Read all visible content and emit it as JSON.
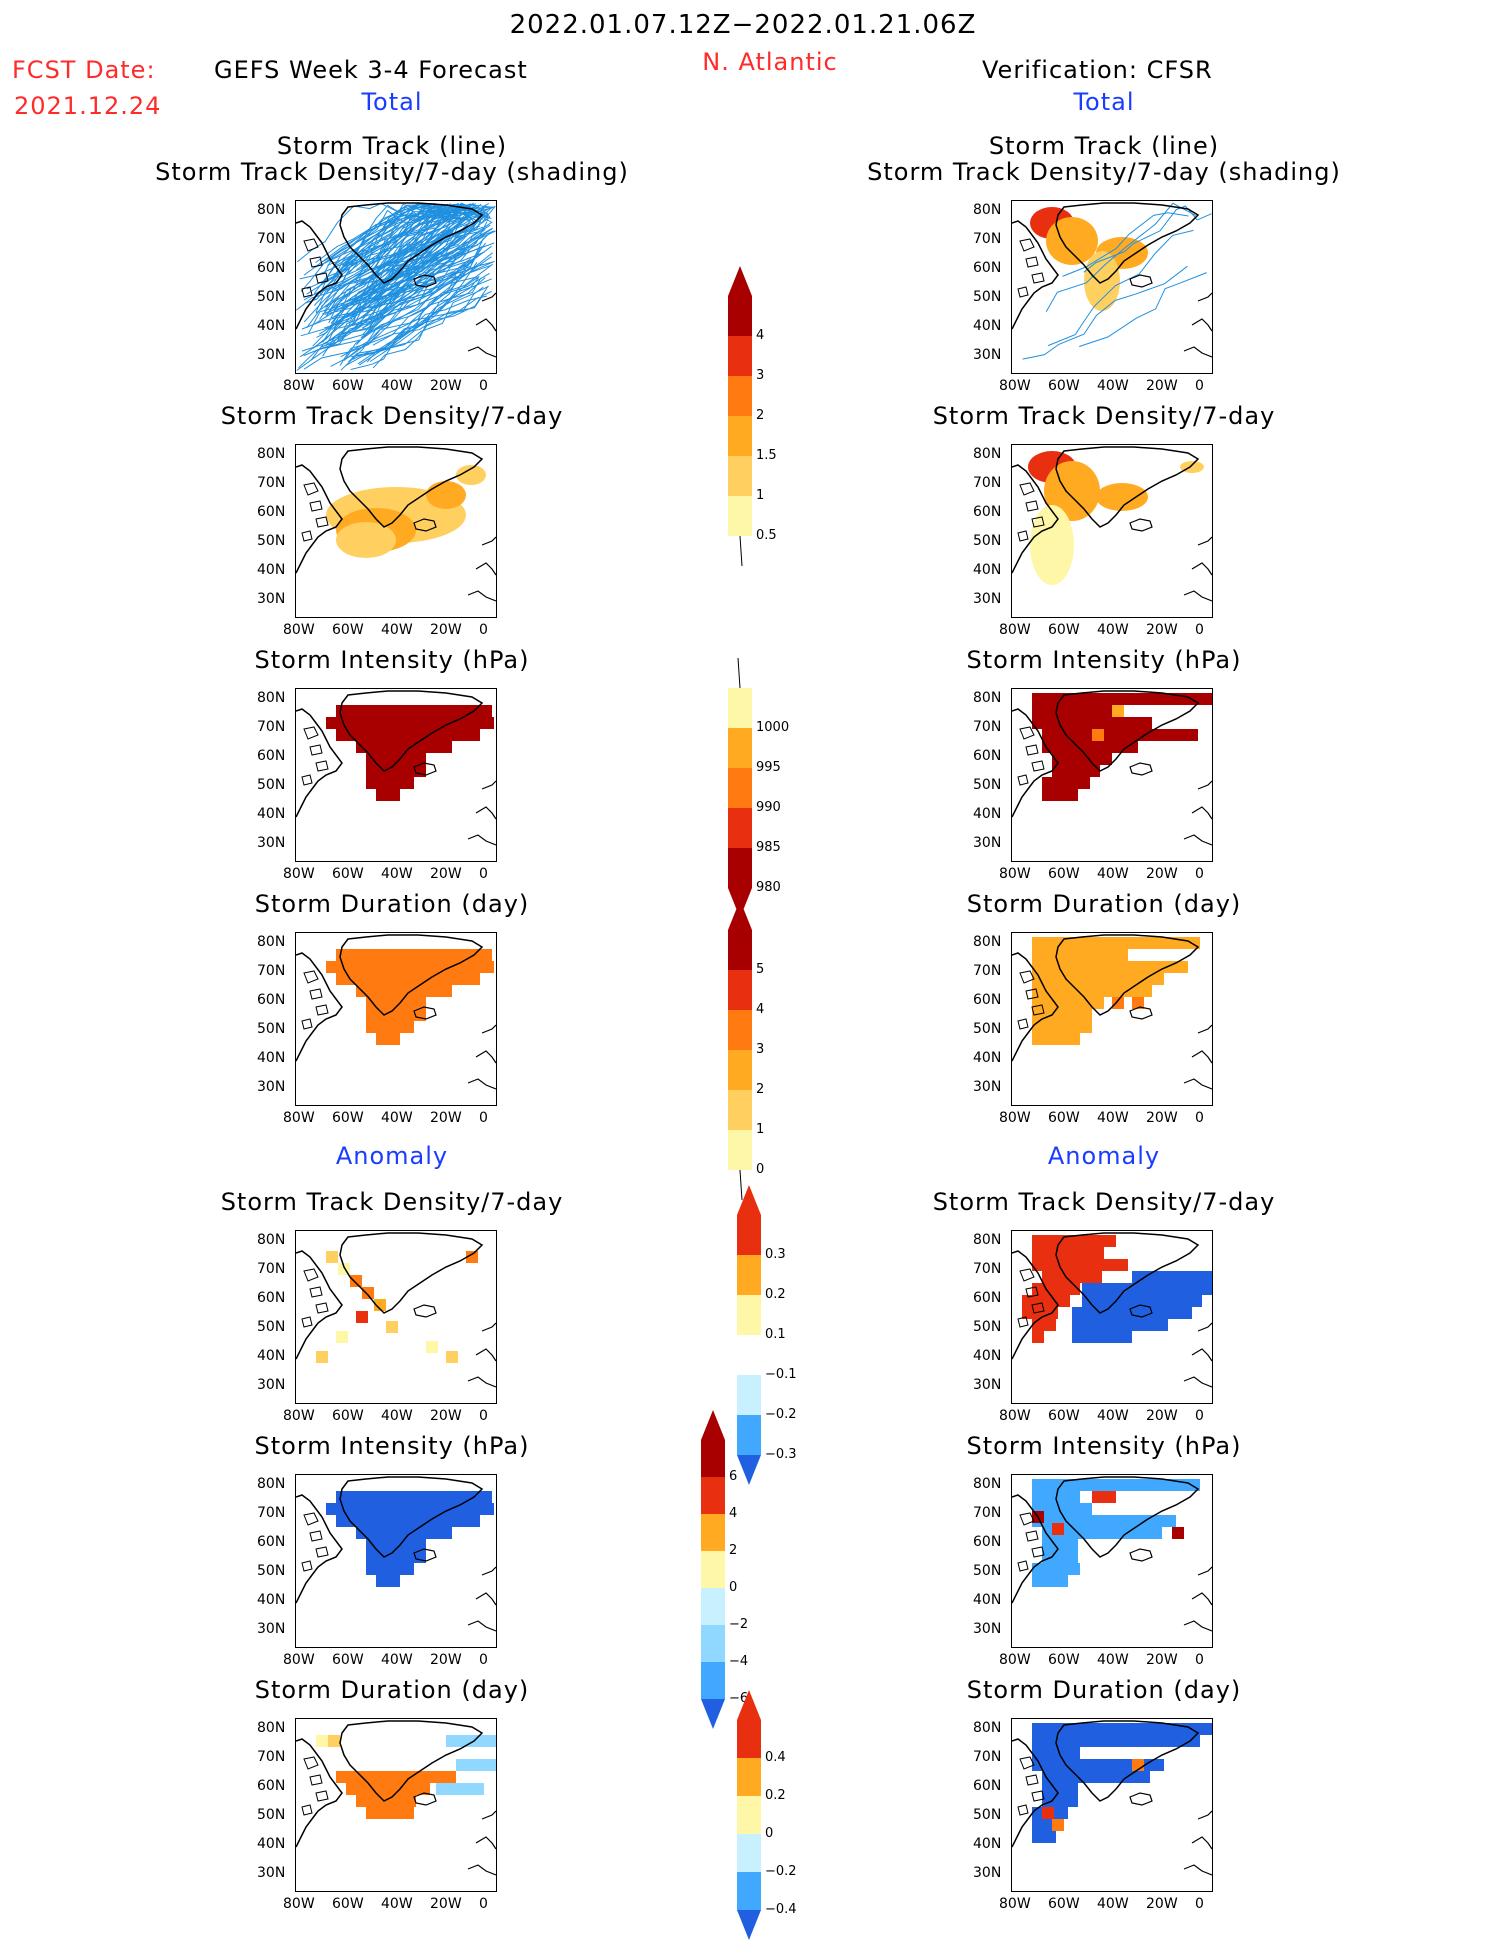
{
  "header": {
    "date_range": "2022.01.07.12Z−2022.01.21.06Z",
    "fcst_label": "FCST Date:",
    "fcst_date": "2021.12.24",
    "model_title": "GEFS Week 3-4 Forecast",
    "region": "N. Atlantic",
    "verification": "Verification: CFSR",
    "left_total": "Total",
    "right_total": "Total",
    "left_anomaly": "Anomaly",
    "right_anomaly": "Anomaly"
  },
  "panel_titles": {
    "track_line": "Storm Track (line)",
    "track_density_shading": "Storm Track Density/7-day (shading)",
    "track_density": "Storm Track Density/7-day",
    "intensity": "Storm Intensity (hPa)",
    "duration": "Storm Duration (day)"
  },
  "axes": {
    "lat_labels": [
      "80N",
      "70N",
      "60N",
      "50N",
      "40N",
      "30N"
    ],
    "lon_labels": [
      "80W",
      "60W",
      "40W",
      "20W",
      "0"
    ]
  },
  "colorbars": {
    "density_total": [
      "0.5",
      "1",
      "1.5",
      "2",
      "3",
      "4"
    ],
    "intensity_total": [
      "1000",
      "995",
      "990",
      "985",
      "980"
    ],
    "duration_total": [
      "0",
      "1",
      "2",
      "3",
      "4",
      "5"
    ],
    "density_anom": [
      "0.3",
      "0.2",
      "0.1",
      "−0.1",
      "−0.2",
      "−0.3"
    ],
    "intensity_anom": [
      "6",
      "4",
      "2",
      "0",
      "−2",
      "−4",
      "−6"
    ],
    "duration_anom": [
      "0.4",
      "0.2",
      "0",
      "−0.2",
      "−0.4"
    ]
  },
  "colors": {
    "warm": [
      "#fff7a8",
      "#ffd060",
      "#ffaa20",
      "#ff7a10",
      "#e83010",
      "#a80000"
    ],
    "cool": [
      "#c8f0ff",
      "#90d8ff",
      "#40a8ff",
      "#2060e0"
    ],
    "track_line": "#2090e0"
  }
}
